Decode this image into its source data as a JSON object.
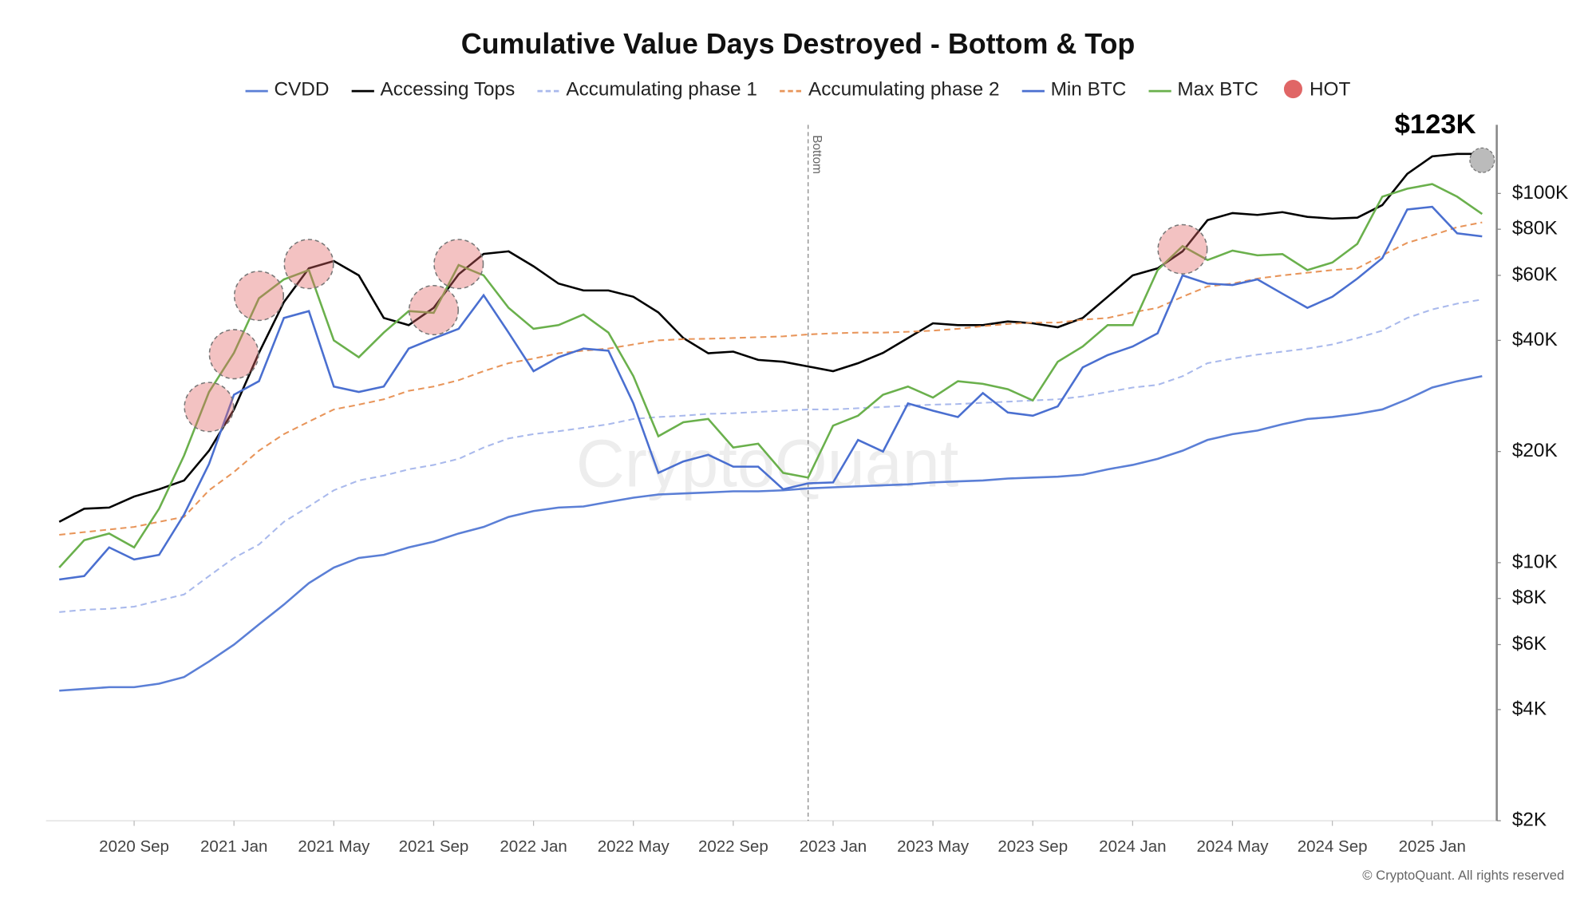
{
  "chart_data": {
    "type": "line",
    "title": "Cumulative Value Days Destroyed - Bottom & Top",
    "ylog": true,
    "grid": false,
    "xlim": [
      "2020-05",
      "2025-04"
    ],
    "ylim": [
      2000,
      150000
    ],
    "xticks": [
      {
        "value": "2020-09",
        "label": "2020 Sep"
      },
      {
        "value": "2021-01",
        "label": "2021 Jan"
      },
      {
        "value": "2021-05",
        "label": "2021 May"
      },
      {
        "value": "2021-09",
        "label": "2021 Sep"
      },
      {
        "value": "2022-01",
        "label": "2022 Jan"
      },
      {
        "value": "2022-05",
        "label": "2022 May"
      },
      {
        "value": "2022-09",
        "label": "2022 Sep"
      },
      {
        "value": "2023-01",
        "label": "2023 Jan"
      },
      {
        "value": "2023-05",
        "label": "2023 May"
      },
      {
        "value": "2023-09",
        "label": "2023 Sep"
      },
      {
        "value": "2024-01",
        "label": "2024 Jan"
      },
      {
        "value": "2024-05",
        "label": "2024 May"
      },
      {
        "value": "2024-09",
        "label": "2024 Sep"
      },
      {
        "value": "2025-01",
        "label": "2025 Jan"
      }
    ],
    "yticks": [
      {
        "value": 2000,
        "label": "$2K"
      },
      {
        "value": 4000,
        "label": "$4K"
      },
      {
        "value": 6000,
        "label": "$6K"
      },
      {
        "value": 8000,
        "label": "$8K"
      },
      {
        "value": 10000,
        "label": "$10K"
      },
      {
        "value": 20000,
        "label": "$20K"
      },
      {
        "value": 40000,
        "label": "$40K"
      },
      {
        "value": 60000,
        "label": "$60K"
      },
      {
        "value": 80000,
        "label": "$80K"
      },
      {
        "value": 100000,
        "label": "$100K"
      }
    ],
    "x": [
      "2020-06",
      "2020-07",
      "2020-08",
      "2020-09",
      "2020-10",
      "2020-11",
      "2020-12",
      "2021-01",
      "2021-02",
      "2021-03",
      "2021-04",
      "2021-05",
      "2021-06",
      "2021-07",
      "2021-08",
      "2021-09",
      "2021-10",
      "2021-11",
      "2021-12",
      "2022-01",
      "2022-02",
      "2022-03",
      "2022-04",
      "2022-05",
      "2022-06",
      "2022-07",
      "2022-08",
      "2022-09",
      "2022-10",
      "2022-11",
      "2022-12",
      "2023-01",
      "2023-02",
      "2023-03",
      "2023-04",
      "2023-05",
      "2023-06",
      "2023-07",
      "2023-08",
      "2023-09",
      "2023-10",
      "2023-11",
      "2023-12",
      "2024-01",
      "2024-02",
      "2024-03",
      "2024-04",
      "2024-05",
      "2024-06",
      "2024-07",
      "2024-08",
      "2024-09",
      "2024-10",
      "2024-11",
      "2024-12",
      "2025-01",
      "2025-02",
      "2025-03"
    ],
    "series": [
      {
        "name": "CVDD",
        "color": "#5b7fd6",
        "dash": false,
        "values": [
          4500,
          4550,
          4600,
          4600,
          4700,
          4900,
          5400,
          6000,
          6800,
          7700,
          8800,
          9700,
          10300,
          10500,
          11000,
          11400,
          12000,
          12500,
          13300,
          13800,
          14100,
          14200,
          14600,
          15000,
          15300,
          15400,
          15500,
          15600,
          15600,
          15700,
          15900,
          16000,
          16100,
          16200,
          16300,
          16500,
          16600,
          16700,
          16900,
          17000,
          17100,
          17300,
          17900,
          18400,
          19100,
          20100,
          21500,
          22300,
          22800,
          23700,
          24500,
          24800,
          25300,
          26000,
          27700,
          29800,
          31000,
          32000
        ]
      },
      {
        "name": "Accessing Tops",
        "color": "#000000",
        "dash": false,
        "values": [
          12900,
          14000,
          14100,
          15100,
          15800,
          16700,
          20100,
          26000,
          37000,
          50800,
          62700,
          65600,
          60000,
          46000,
          44000,
          49000,
          60400,
          68600,
          69700,
          63500,
          57000,
          54600,
          54600,
          52500,
          47600,
          40600,
          36900,
          37300,
          35400,
          35000,
          34000,
          33000,
          34700,
          37000,
          40600,
          44500,
          44000,
          44000,
          45000,
          44500,
          43400,
          46000,
          52500,
          60000,
          62700,
          69700,
          84700,
          88500,
          87500,
          89000,
          86400,
          85500,
          86000,
          93000,
          113000,
          126000,
          128000,
          128000
        ]
      },
      {
        "name": "Accumulating phase 1",
        "color": "#a9b9ec",
        "dash": true,
        "values": [
          7350,
          7450,
          7500,
          7600,
          7900,
          8200,
          9200,
          10300,
          11200,
          12900,
          14200,
          15700,
          16700,
          17200,
          17900,
          18400,
          19100,
          20500,
          21700,
          22300,
          22700,
          23200,
          23700,
          24500,
          24800,
          25000,
          25300,
          25400,
          25600,
          25800,
          26000,
          26000,
          26200,
          26400,
          26600,
          26800,
          26900,
          27100,
          27300,
          27500,
          27700,
          28200,
          29000,
          29800,
          30300,
          32000,
          34700,
          35700,
          36600,
          37300,
          38000,
          39000,
          40600,
          42500,
          46000,
          48500,
          50300,
          51600
        ]
      },
      {
        "name": "Accumulating phase 2",
        "color": "#e8955a",
        "dash": true,
        "values": [
          11900,
          12100,
          12300,
          12500,
          12900,
          13300,
          15700,
          17600,
          20100,
          22300,
          24100,
          26000,
          26800,
          27700,
          29200,
          30000,
          31200,
          33000,
          34700,
          35700,
          36900,
          37500,
          38000,
          39000,
          40000,
          40300,
          40400,
          40600,
          40800,
          41000,
          41500,
          41800,
          42000,
          42000,
          42200,
          42500,
          43000,
          43700,
          44300,
          44700,
          44700,
          45500,
          46000,
          47600,
          49000,
          52500,
          56000,
          57000,
          58800,
          60000,
          61000,
          62000,
          62700,
          68000,
          73500,
          77000,
          81000,
          83500
        ]
      },
      {
        "name": "Min BTC",
        "color": "#4a6fd0",
        "dash": false,
        "values": [
          9000,
          9200,
          11000,
          10200,
          10500,
          13500,
          18500,
          28500,
          31000,
          46000,
          48000,
          30000,
          29000,
          30000,
          38000,
          40500,
          43000,
          53000,
          42000,
          33000,
          36000,
          38000,
          37500,
          27000,
          17500,
          18800,
          19600,
          18200,
          18200,
          15800,
          16400,
          16500,
          21500,
          20000,
          27000,
          25800,
          24800,
          28800,
          25500,
          25000,
          26500,
          33800,
          36500,
          38500,
          41800,
          60000,
          57000,
          56500,
          58500,
          53500,
          49000,
          52500,
          58800,
          66800,
          90500,
          92000,
          78000,
          76500
        ]
      },
      {
        "name": "Max BTC",
        "color": "#6ab04c",
        "dash": false,
        "values": [
          9700,
          11500,
          12000,
          11000,
          14000,
          19500,
          29000,
          37000,
          52000,
          58500,
          62000,
          40000,
          36000,
          42000,
          48000,
          47500,
          64000,
          60000,
          49000,
          43000,
          44000,
          47000,
          42000,
          32000,
          22000,
          24000,
          24500,
          20500,
          21000,
          17500,
          17000,
          23500,
          25000,
          28500,
          30000,
          28000,
          31000,
          30500,
          29500,
          27500,
          35000,
          38500,
          44000,
          44000,
          62000,
          72000,
          66000,
          70000,
          68000,
          68500,
          62000,
          65000,
          73000,
          98000,
          103000,
          106000,
          98000,
          88000
        ]
      }
    ],
    "hot": {
      "name": "HOT",
      "color": "#e06666",
      "x": [
        "2020-12",
        "2021-01",
        "2021-02",
        "2021-04",
        "2021-09",
        "2021-10",
        "2024-03"
      ],
      "values": [
        26400,
        36700,
        52800,
        64400,
        48300,
        64400,
        70600
      ]
    },
    "peak": {
      "x": "2025-03",
      "value": 123000,
      "label": "$123K"
    },
    "bottom_marker": {
      "x": "2022-12",
      "label": "Bottom"
    },
    "watermark": "CryptoQuant",
    "credit": "© CryptoQuant. All rights reserved"
  }
}
